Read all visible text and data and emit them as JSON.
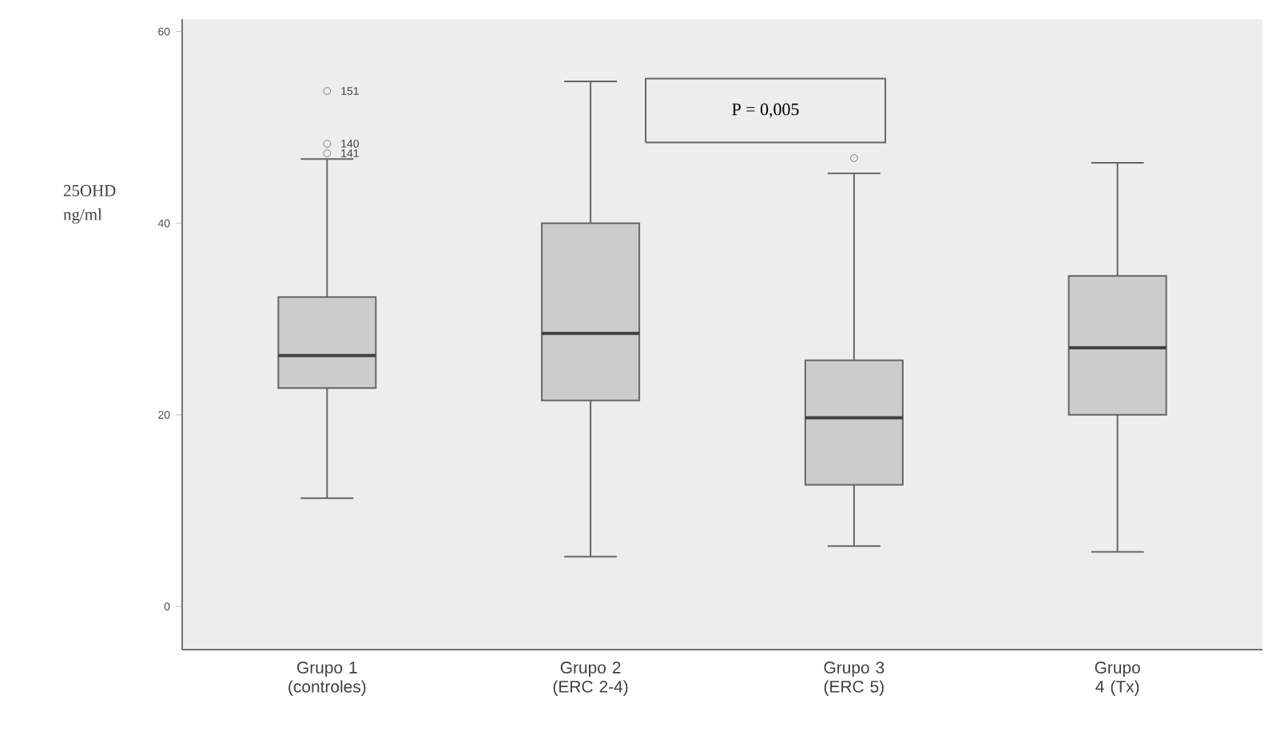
{
  "chart_data": {
    "type": "box",
    "ylabel": "25OHD ng/ml",
    "categories": [
      "Grupo 1 (controles)",
      "Grupo 2 (ERC 2-4)",
      "Grupo 3 (ERC 5)",
      "Grupo 4 (Tx)"
    ],
    "boxes": [
      {
        "low": 11.3,
        "q1": 22.8,
        "median": 26.2,
        "q3": 32.3,
        "high": 46.7,
        "outliers": [
          47.3,
          48.3,
          53.8
        ]
      },
      {
        "low": 5.2,
        "q1": 21.5,
        "median": 28.5,
        "q3": 40,
        "high": 54.8
      },
      {
        "low": 6.3,
        "q1": 12.7,
        "median": 19.7,
        "q3": 25.7,
        "high": 45.2,
        "outliers": [
          46.8
        ]
      },
      {
        "low": 5.7,
        "q1": 20,
        "median": 27,
        "q3": 34.5,
        "high": 46.3
      }
    ],
    "color": "#cccccc",
    "ylim": [
      -4.5,
      61.3
    ],
    "yticks": [
      0,
      20,
      40,
      60
    ],
    "grid": false,
    "annotations": [
      "P = 0,005",
      "151",
      "140",
      "141"
    ]
  }
}
